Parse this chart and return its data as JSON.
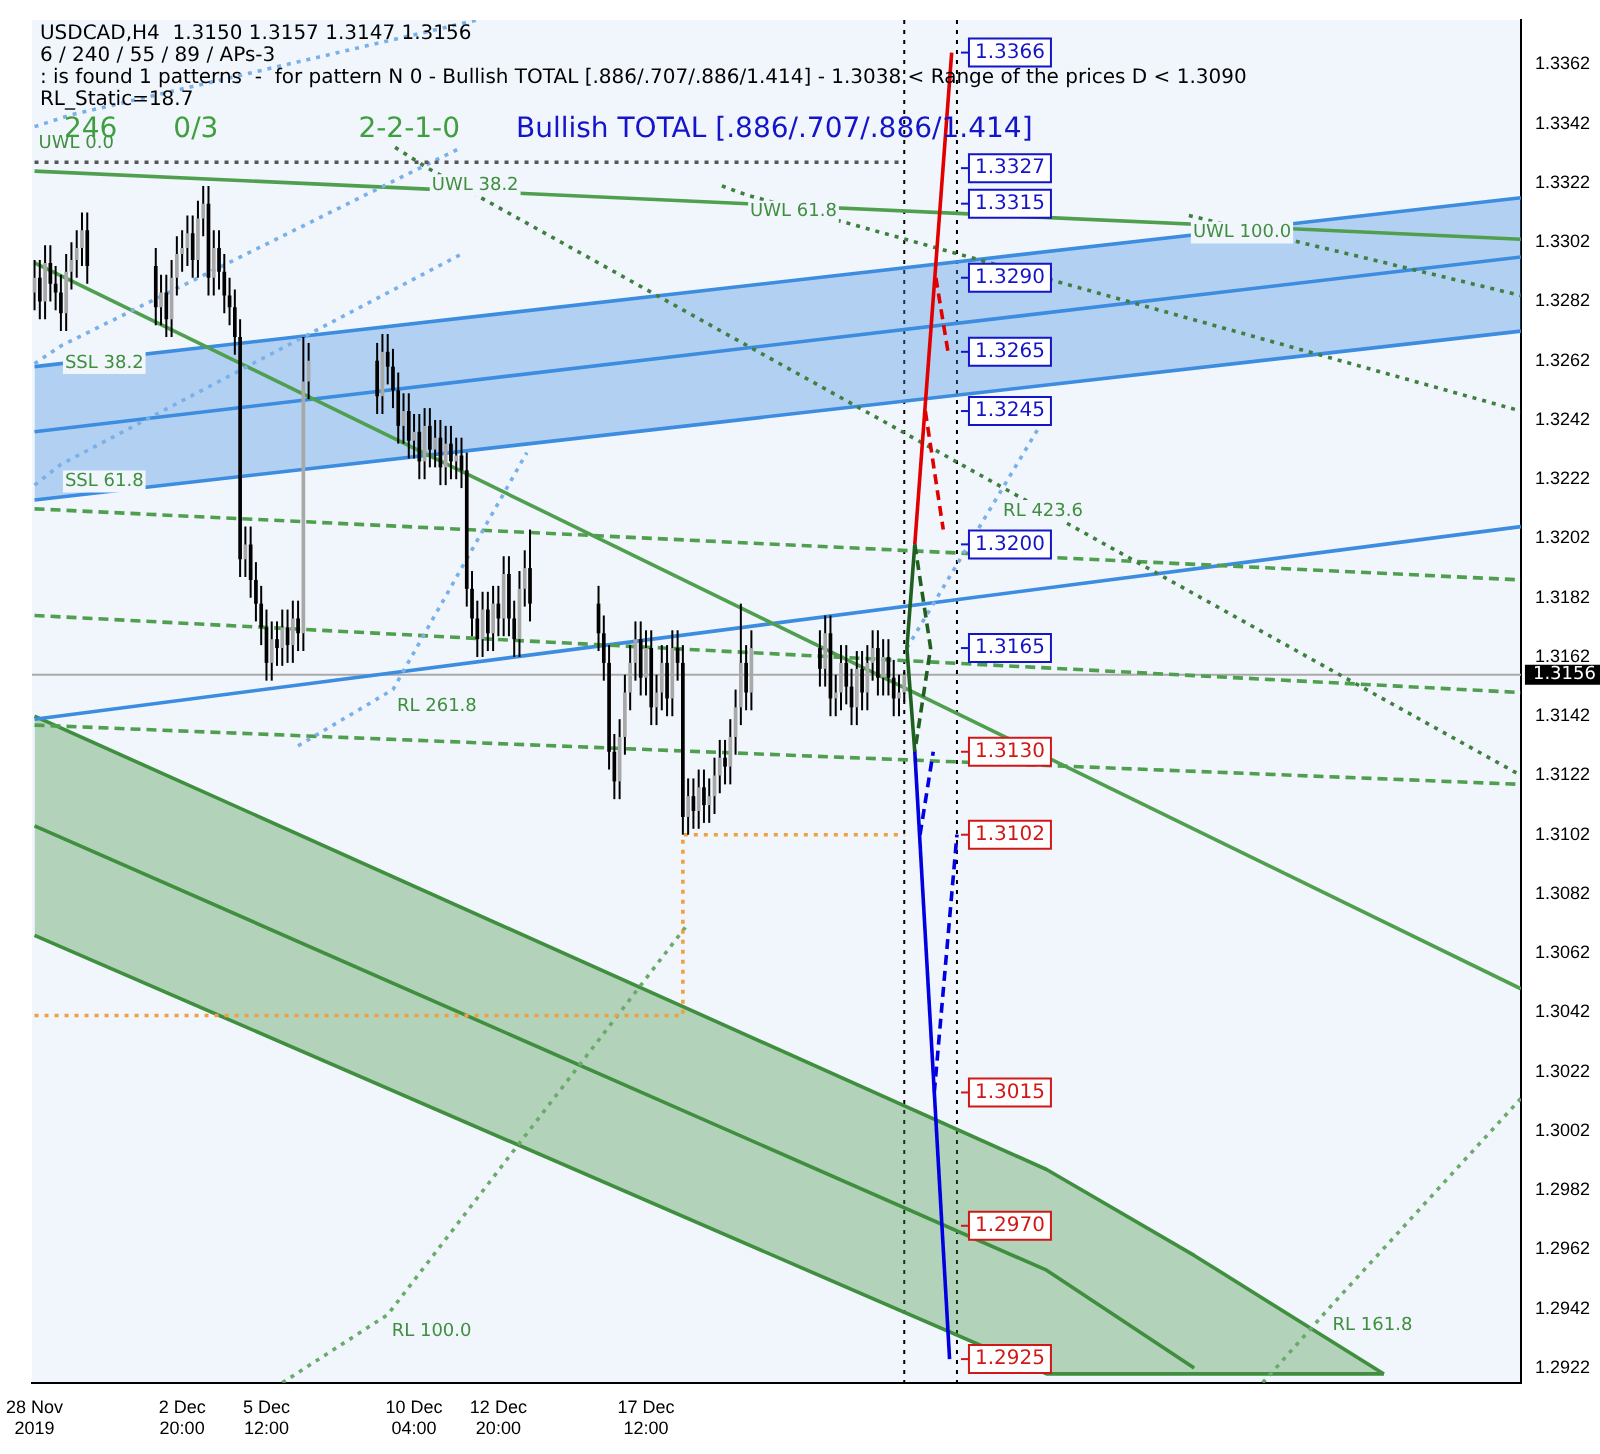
{
  "chart_data": {
    "type": "candlestick",
    "title": "USDCAD,H4  1.3150 1.3157 1.3147 1.3156",
    "annotations": [
      "6 / 240 / 55 / 89 / APs-3",
      ": is found 1 patterns  -  for pattern N 0 - Bullish TOTAL [.886/.707/.886/1.414] - 1.3038 < Range of the prices D < 1.3090",
      "RL_Static=18.7",
      "246",
      "0/3",
      "2-2-1-0",
      "Bullish TOTAL [.886/.707/.886/1.414]",
      {
        "text": "1.3366",
        "x": "2019-12-27T04:00",
        "y": 1.3366
      },
      {
        "text": "1.3327",
        "x": "2019-12-26T21:25",
        "y": 1.3327
      },
      {
        "text": "1.3315",
        "x": "2019-12-26T19:24",
        "y": 1.3315
      },
      {
        "text": "1.3290",
        "x": "2019-12-26T16:00",
        "y": 1.329
      },
      {
        "text": "1.3265",
        "x": "2019-12-27T01:12",
        "y": 1.3265
      },
      {
        "text": "1.3245",
        "x": "2019-12-26T08:00",
        "y": 1.3245
      },
      {
        "text": "1.3200",
        "x": "2019-12-26T00:00",
        "y": 1.32
      },
      {
        "text": "1.3165",
        "x": "2019-12-26T12:00",
        "y": 1.3165
      },
      {
        "text": "1.3130",
        "x": "2019-12-26T00:00",
        "y": 1.313
      },
      {
        "text": "1.3102",
        "x": "2019-12-26T04:00",
        "y": 1.3102
      },
      {
        "text": "1.3015",
        "x": "2019-12-26T14:48",
        "y": 1.3015
      },
      {
        "text": "1.2970",
        "x": "2019-12-26T20:36",
        "y": 1.297
      },
      {
        "text": "1.2925",
        "x": "2019-12-27T02:24",
        "y": 1.2925
      },
      {
        "text": "UWL 0.0",
        "x": "2019-11-28T04:00",
        "y": 1.3341
      },
      {
        "text": "UWL 38.2",
        "x": "2019-12-10T14:24",
        "y": 1.3327
      },
      {
        "text": "UWL 61.8",
        "x": "2019-12-20T16:00",
        "y": 1.3318
      },
      {
        "text": "UWL 100.0",
        "x": "2020-01-03T16:00",
        "y": 1.3311
      },
      {
        "text": "SSL 38.2",
        "x": "2019-11-29T00:00",
        "y": 1.3267
      },
      {
        "text": "SSL 61.8",
        "x": "2019-11-29T00:00",
        "y": 1.3227
      },
      {
        "text": "RL 261.8",
        "x": "2019-12-09T12:00",
        "y": 1.3151
      },
      {
        "text": "RL 423.6",
        "x": "2019-12-28T16:00",
        "y": 1.3217
      },
      {
        "text": "RL 100.0",
        "x": "2019-12-09T08:00",
        "y": 1.294
      },
      {
        "text": "RL 161.8",
        "x": "2020-01-08T02:00",
        "y": 1.2942
      }
    ],
    "x": [
      "2019-11-28T04:00",
      "2019-11-28T08:00",
      "2019-11-28T12:00",
      "2019-11-28T16:00",
      "2019-11-28T20:00",
      "2019-11-29T00:00",
      "2019-11-29T04:00",
      "2019-11-29T08:00",
      "2019-11-29T12:00",
      "2019-11-29T16:00",
      "2019-11-29T20:00",
      "2019-12-02T00:00",
      "2019-12-02T04:00",
      "2019-12-02T08:00",
      "2019-12-02T12:00",
      "2019-12-02T16:00",
      "2019-12-02T20:00",
      "2019-12-03T00:00",
      "2019-12-03T04:00",
      "2019-12-03T08:00",
      "2019-12-03T12:00",
      "2019-12-03T16:00",
      "2019-12-03T20:00",
      "2019-12-04T00:00",
      "2019-12-04T04:00",
      "2019-12-04T08:00",
      "2019-12-04T12:00",
      "2019-12-04T16:00",
      "2019-12-04T20:00",
      "2019-12-05T00:00",
      "2019-12-05T04:00",
      "2019-12-05T08:00",
      "2019-12-05T12:00",
      "2019-12-05T16:00",
      "2019-12-05T20:00",
      "2019-12-06T00:00",
      "2019-12-06T04:00",
      "2019-12-06T08:00",
      "2019-12-06T12:00",
      "2019-12-06T16:00",
      "2019-12-06T20:00",
      "2019-12-09T00:00",
      "2019-12-09T04:00",
      "2019-12-09T08:00",
      "2019-12-09T12:00",
      "2019-12-09T16:00",
      "2019-12-09T20:00",
      "2019-12-10T00:00",
      "2019-12-10T04:00",
      "2019-12-10T08:00",
      "2019-12-10T12:00",
      "2019-12-10T16:00",
      "2019-12-10T20:00",
      "2019-12-11T00:00",
      "2019-12-11T04:00",
      "2019-12-11T08:00",
      "2019-12-11T12:00",
      "2019-12-11T16:00",
      "2019-12-11T20:00",
      "2019-12-12T00:00",
      "2019-12-12T04:00",
      "2019-12-12T08:00",
      "2019-12-12T12:00",
      "2019-12-12T16:00",
      "2019-12-12T20:00",
      "2019-12-13T00:00",
      "2019-12-13T04:00",
      "2019-12-13T08:00",
      "2019-12-13T12:00",
      "2019-12-13T16:00",
      "2019-12-13T20:00",
      "2019-12-16T00:00",
      "2019-12-16T04:00",
      "2019-12-16T08:00",
      "2019-12-16T12:00",
      "2019-12-16T16:00",
      "2019-12-16T20:00",
      "2019-12-17T00:00",
      "2019-12-17T04:00",
      "2019-12-17T08:00",
      "2019-12-17T12:00",
      "2019-12-17T16:00",
      "2019-12-17T20:00",
      "2019-12-18T00:00",
      "2019-12-18T04:00",
      "2019-12-18T08:00",
      "2019-12-18T12:00",
      "2019-12-18T16:00",
      "2019-12-18T20:00",
      "2019-12-19T00:00",
      "2019-12-19T04:00",
      "2019-12-19T08:00",
      "2019-12-19T12:00",
      "2019-12-19T16:00",
      "2019-12-19T20:00",
      "2019-12-20T00:00",
      "2019-12-20T04:00",
      "2019-12-20T08:00",
      "2019-12-20T12:00",
      "2019-12-20T16:00",
      "2019-12-20T20:00",
      "2019-12-23T00:00",
      "2019-12-23T04:00",
      "2019-12-23T08:00",
      "2019-12-23T12:00",
      "2019-12-23T16:00",
      "2019-12-23T20:00",
      "2019-12-24T00:00",
      "2019-12-24T04:00",
      "2019-12-24T08:00",
      "2019-12-24T12:00",
      "2019-12-24T16:00",
      "2019-12-24T20:00",
      "2019-12-25T00:00",
      "2019-12-25T04:00",
      "2019-12-25T08:00",
      "2019-12-25T12:00",
      "2019-12-25T16:00"
    ],
    "ohlc": [
      [
        1.3285,
        1.3296,
        1.3279,
        1.329
      ],
      [
        1.329,
        1.3296,
        1.3276,
        1.3282
      ],
      [
        1.3282,
        1.3301,
        1.3276,
        1.3295
      ],
      [
        1.3295,
        1.3301,
        1.3282,
        1.3288
      ],
      [
        1.3288,
        1.3294,
        1.3279,
        1.3285
      ],
      [
        1.3285,
        1.3291,
        1.3272,
        1.3278
      ],
      [
        1.3278,
        1.3298,
        1.3272,
        1.3292
      ],
      [
        1.3292,
        1.3302,
        1.3286,
        1.3296
      ],
      [
        1.3296,
        1.3306,
        1.329,
        1.33
      ],
      [
        1.33,
        1.3312,
        1.3294,
        1.3306
      ],
      [
        1.3306,
        1.3312,
        1.3288,
        1.3294
      ],
      [
        1.3294,
        1.33,
        1.3274,
        1.328
      ],
      [
        1.328,
        1.3291,
        1.3274,
        1.3285
      ],
      [
        1.3285,
        1.3291,
        1.327,
        1.3276
      ],
      [
        1.3276,
        1.3296,
        1.327,
        1.329
      ],
      [
        1.329,
        1.3304,
        1.3284,
        1.3298
      ],
      [
        1.3298,
        1.3306,
        1.3292,
        1.33
      ],
      [
        1.33,
        1.3311,
        1.3294,
        1.3305
      ],
      [
        1.3305,
        1.3311,
        1.329,
        1.3296
      ],
      [
        1.3296,
        1.3316,
        1.329,
        1.331
      ],
      [
        1.331,
        1.3321,
        1.3304,
        1.3315
      ],
      [
        1.3315,
        1.3321,
        1.3284,
        1.329
      ],
      [
        1.329,
        1.3306,
        1.3284,
        1.33
      ],
      [
        1.33,
        1.3306,
        1.3286,
        1.3292
      ],
      [
        1.3292,
        1.3298,
        1.3278,
        1.3284
      ],
      [
        1.3284,
        1.329,
        1.3274,
        1.328
      ],
      [
        1.328,
        1.3286,
        1.3264,
        1.327
      ],
      [
        1.327,
        1.3276,
        1.3189,
        1.3195
      ],
      [
        1.3195,
        1.3206,
        1.3189,
        1.32
      ],
      [
        1.32,
        1.3206,
        1.3182,
        1.3188
      ],
      [
        1.3188,
        1.3194,
        1.3174,
        1.318
      ],
      [
        1.318,
        1.3186,
        1.3166,
        1.3172
      ],
      [
        1.3172,
        1.3178,
        1.3154,
        1.316
      ],
      [
        1.316,
        1.3174,
        1.3154,
        1.3168
      ],
      [
        1.3168,
        1.3174,
        1.3159,
        1.3165
      ],
      [
        1.3165,
        1.3178,
        1.3159,
        1.3172
      ],
      [
        1.3172,
        1.3178,
        1.316,
        1.3166
      ],
      [
        1.3166,
        1.3181,
        1.316,
        1.3175
      ],
      [
        1.3175,
        1.3181,
        1.3164,
        1.317
      ],
      [
        1.317,
        1.327,
        1.3164,
        1.3255
      ],
      [
        1.3255,
        1.3268,
        1.3249,
        1.3262
      ],
      [
        1.3262,
        1.3268,
        1.3244,
        1.325
      ],
      [
        1.325,
        1.3271,
        1.3244,
        1.3265
      ],
      [
        1.3265,
        1.3271,
        1.3254,
        1.326
      ],
      [
        1.326,
        1.3266,
        1.3246,
        1.3252
      ],
      [
        1.3252,
        1.3258,
        1.3234,
        1.324
      ],
      [
        1.324,
        1.3251,
        1.3234,
        1.3245
      ],
      [
        1.3245,
        1.3251,
        1.3229,
        1.3235
      ],
      [
        1.3235,
        1.3244,
        1.3229,
        1.3238
      ],
      [
        1.3238,
        1.3244,
        1.3222,
        1.3228
      ],
      [
        1.3228,
        1.3246,
        1.3222,
        1.324
      ],
      [
        1.324,
        1.3246,
        1.3226,
        1.3232
      ],
      [
        1.3232,
        1.3242,
        1.3226,
        1.3236
      ],
      [
        1.3236,
        1.3242,
        1.322,
        1.3226
      ],
      [
        1.3226,
        1.324,
        1.322,
        1.3234
      ],
      [
        1.3234,
        1.324,
        1.3222,
        1.3228
      ],
      [
        1.3228,
        1.3236,
        1.3222,
        1.323
      ],
      [
        1.323,
        1.3236,
        1.3219,
        1.3225
      ],
      [
        1.3225,
        1.3231,
        1.3179,
        1.3185
      ],
      [
        1.3185,
        1.3191,
        1.3169,
        1.3175
      ],
      [
        1.3175,
        1.3181,
        1.3162,
        1.3168
      ],
      [
        1.3168,
        1.3184,
        1.3162,
        1.3178
      ],
      [
        1.3178,
        1.3184,
        1.3164,
        1.317
      ],
      [
        1.317,
        1.3186,
        1.3164,
        1.318
      ],
      [
        1.318,
        1.3186,
        1.3169,
        1.3175
      ],
      [
        1.3175,
        1.3196,
        1.3169,
        1.319
      ],
      [
        1.319,
        1.3196,
        1.3169,
        1.3175
      ],
      [
        1.3175,
        1.3181,
        1.3162,
        1.3168
      ],
      [
        1.3168,
        1.3191,
        1.3162,
        1.3185
      ],
      [
        1.3185,
        1.3198,
        1.3179,
        1.3192
      ],
      [
        1.3192,
        1.3205,
        1.3174,
        1.318
      ],
      [
        1.318,
        1.3186,
        1.3164,
        1.317
      ],
      [
        1.317,
        1.3176,
        1.3154,
        1.316
      ],
      [
        1.316,
        1.3166,
        1.3124,
        1.313
      ],
      [
        1.313,
        1.3136,
        1.3114,
        1.312
      ],
      [
        1.312,
        1.3141,
        1.3114,
        1.3135
      ],
      [
        1.3135,
        1.3156,
        1.3129,
        1.315
      ],
      [
        1.315,
        1.3166,
        1.3144,
        1.316
      ],
      [
        1.316,
        1.3174,
        1.3154,
        1.3168
      ],
      [
        1.3168,
        1.3174,
        1.3149,
        1.3155
      ],
      [
        1.3155,
        1.3171,
        1.3149,
        1.3165
      ],
      [
        1.3165,
        1.3171,
        1.3139,
        1.3145
      ],
      [
        1.3145,
        1.3156,
        1.3139,
        1.315
      ],
      [
        1.315,
        1.3166,
        1.3144,
        1.316
      ],
      [
        1.316,
        1.3166,
        1.3142,
        1.3148
      ],
      [
        1.3148,
        1.3171,
        1.3142,
        1.3165
      ],
      [
        1.3165,
        1.3171,
        1.3154,
        1.316
      ],
      [
        1.316,
        1.3166,
        1.3102,
        1.3108
      ],
      [
        1.3108,
        1.3121,
        1.3102,
        1.3115
      ],
      [
        1.3115,
        1.3121,
        1.3104,
        1.311
      ],
      [
        1.311,
        1.3124,
        1.3104,
        1.3118
      ],
      [
        1.3118,
        1.3124,
        1.3106,
        1.3112
      ],
      [
        1.3112,
        1.3121,
        1.3106,
        1.3115
      ],
      [
        1.3115,
        1.3128,
        1.3109,
        1.3122
      ],
      [
        1.3122,
        1.3134,
        1.3116,
        1.3128
      ],
      [
        1.3128,
        1.3134,
        1.3119,
        1.3125
      ],
      [
        1.3125,
        1.3141,
        1.3119,
        1.3135
      ],
      [
        1.3135,
        1.3151,
        1.3129,
        1.3145
      ],
      [
        1.3145,
        1.318,
        1.3139,
        1.316
      ],
      [
        1.316,
        1.3166,
        1.3144,
        1.315
      ],
      [
        1.315,
        1.3171,
        1.3144,
        1.3165
      ],
      [
        1.3165,
        1.3171,
        1.3152,
        1.3158
      ],
      [
        1.3158,
        1.3176,
        1.3152,
        1.317
      ],
      [
        1.317,
        1.3176,
        1.3142,
        1.3148
      ],
      [
        1.3148,
        1.3156,
        1.3142,
        1.315
      ],
      [
        1.315,
        1.3166,
        1.3144,
        1.316
      ],
      [
        1.316,
        1.3166,
        1.3146,
        1.3152
      ],
      [
        1.3152,
        1.3158,
        1.3139,
        1.3145
      ],
      [
        1.3145,
        1.3164,
        1.3139,
        1.3158
      ],
      [
        1.3158,
        1.3164,
        1.3144,
        1.315
      ],
      [
        1.315,
        1.3166,
        1.3144,
        1.316
      ],
      [
        1.316,
        1.3171,
        1.3154,
        1.3165
      ],
      [
        1.3165,
        1.3171,
        1.3149,
        1.3155
      ],
      [
        1.3155,
        1.3168,
        1.3149,
        1.3162
      ],
      [
        1.3162,
        1.3168,
        1.3149,
        1.3155
      ],
      [
        1.3155,
        1.3161,
        1.3142,
        1.3148
      ],
      [
        1.3148,
        1.3156,
        1.3142,
        1.315
      ],
      [
        1.315,
        1.3157,
        1.3147,
        1.3156
      ]
    ],
    "series": [
      {
        "type": "line",
        "x": [
          "2019-11-28T04:00",
          "2020-01-14T04:00"
        ],
        "values": [
          1.3238,
          1.3297
        ],
        "lower": [
          1.3215,
          1.3272
        ],
        "upper": [
          1.326,
          1.3317
        ],
        "color": "#3c8ce0"
      },
      {
        "type": "line",
        "x": [
          "2019-11-28T04:00",
          "2019-12-30T04:00",
          "2020-01-03T20:00",
          "2020-01-09T20:00"
        ],
        "values": [
          1.3105,
          1.2955,
          1.2922,
          null
        ],
        "lower": [
          1.3068,
          1.292,
          1.292,
          1.292
        ],
        "upper": [
          1.3142,
          1.2989,
          1.296,
          1.292
        ],
        "color": "#3f8f3f"
      },
      {
        "type": "line",
        "x": [
          "2019-11-28T04:00",
          "2020-01-14T04:00"
        ],
        "values": [
          1.3215,
          1.3272
        ],
        "color": "#3c8ce0"
      },
      {
        "type": "line",
        "x": [
          "2019-11-28T04:00",
          "2020-01-14T04:00"
        ],
        "values": [
          1.326,
          1.3317
        ],
        "color": "#3c8ce0"
      },
      {
        "type": "line",
        "x": [
          "2019-11-28T04:00",
          "2019-12-30T04:00",
          "2020-01-03T20:00",
          "2020-01-09T20:00"
        ],
        "values": [
          1.3068,
          1.292,
          1.292,
          1.292
        ],
        "color": "#3f8f3f"
      },
      {
        "type": "line",
        "x": [
          "2019-11-28T04:00",
          "2019-12-30T04:00",
          "2020-01-03T20:00",
          "2020-01-09T20:00"
        ],
        "values": [
          1.3142,
          1.2989,
          1.296,
          1.292
        ],
        "color": "#3f8f3f"
      },
      {
        "type": "line",
        "x": [
          "2019-11-28T04:00",
          "2020-01-14T04:00"
        ],
        "values": [
          1.3141,
          1.3206
        ],
        "color": "#3c8ce0"
      },
      {
        "type": "line",
        "x": [
          "2019-11-28T04:00",
          "2020-01-14T04:00"
        ],
        "values": [
          1.3295,
          1.305
        ],
        "color": "#4f9f4f"
      },
      {
        "type": "line",
        "x": [
          "2019-11-28T04:00",
          "2020-01-14T04:00"
        ],
        "values": [
          1.3326,
          1.3303
        ],
        "color": "#4f9f4f"
      },
      {
        "type": "line",
        "x": [
          "2019-11-28T04:00",
          "2020-01-14T04:00"
        ],
        "values": [
          1.3212,
          1.3188
        ],
        "color": "#4f9f4f",
        "line_style": "dashed"
      },
      {
        "type": "line",
        "x": [
          "2019-11-28T04:00",
          "2020-01-14T04:00"
        ],
        "values": [
          1.3176,
          1.315
        ],
        "color": "#4f9f4f",
        "line_style": "dashed"
      },
      {
        "type": "line",
        "x": [
          "2019-11-28T04:00",
          "2020-01-14T04:00"
        ],
        "values": [
          1.3139,
          1.3119
        ],
        "color": "#4f9f4f",
        "line_style": "dashed"
      },
      {
        "type": "line",
        "x": [
          "2019-12-09T13:36",
          "2019-12-10T14:24",
          "2020-01-14T04:00"
        ],
        "values": [
          1.3334,
          1.3327,
          1.3122
        ],
        "color": "#3f7f3f",
        "line_style": "dotted"
      },
      {
        "type": "line",
        "x": [
          "2019-12-19T21:36",
          "2019-12-20T16:00",
          "2020-01-14T04:00"
        ],
        "values": [
          1.3321,
          1.3318,
          1.3245
        ],
        "color": "#3f7f3f",
        "line_style": "dotted"
      },
      {
        "type": "line",
        "x": [
          "2020-01-03T16:00",
          "2020-01-14T04:00"
        ],
        "values": [
          1.3311,
          1.3284
        ],
        "color": "#3f7f3f",
        "line_style": "dotted"
      },
      {
        "type": "line",
        "x": [
          "2019-11-28T04:00",
          "2019-11-29T08:00",
          "2019-12-12T04:00"
        ],
        "values": [
          1.3341,
          1.3345,
          1.3377
        ],
        "color": "#7ab0e8",
        "line_style": "dotted"
      },
      {
        "type": "line",
        "x": [
          "2019-11-28T04:00",
          "2019-11-29T00:00",
          "2019-12-11T16:00"
        ],
        "values": [
          1.3261,
          1.3267,
          1.3334
        ],
        "color": "#7ab0e8",
        "line_style": "dotted"
      },
      {
        "type": "line",
        "x": [
          "2019-11-28T04:00",
          "2019-11-29T00:00",
          "2019-12-11T16:00"
        ],
        "values": [
          1.322,
          1.3227,
          1.3298
        ],
        "color": "#7ab0e8",
        "line_style": "dotted"
      },
      {
        "type": "line",
        "x": [
          "2019-12-06T12:00",
          "2019-12-09T12:00",
          "2019-12-13T17:36"
        ],
        "values": [
          1.3132,
          1.3151,
          1.3231
        ],
        "color": "#7ab0e8",
        "line_style": "dotted"
      },
      {
        "type": "line",
        "x": [
          "2019-12-25T18:00",
          "2019-12-28T16:00",
          "2019-12-30T05:36"
        ],
        "values": [
          1.3165,
          1.3217,
          1.3245
        ],
        "color": "#7ab0e8",
        "line_style": "dotted"
      },
      {
        "type": "line",
        "x": [
          "2019-12-06T00:00",
          "2019-12-09T08:00",
          "2019-12-18T20:00"
        ],
        "values": [
          1.2917,
          1.294,
          1.3072
        ],
        "color": "#6aaa6a",
        "line_style": "dotted"
      },
      {
        "type": "line",
        "x": [
          "2020-01-06T00:00",
          "2020-01-08T02:00",
          "2020-01-14T04:00"
        ],
        "values": [
          1.2917,
          1.2942,
          1.3013
        ],
        "color": "#6aaa6a",
        "line_style": "dotted"
      },
      {
        "type": "line",
        "x": [
          "2019-11-28T04:00",
          "2019-12-25T16:00"
        ],
        "values": [
          1.3329,
          1.3329
        ],
        "color": "#555555",
        "line_style": "dotted"
      },
      {
        "type": "line",
        "x": [
          "2019-11-28T04:00",
          "2019-12-18T16:00",
          "2019-12-18T16:00",
          "2019-12-25T16:00"
        ],
        "values": [
          1.3041,
          1.3041,
          1.3102,
          1.3102
        ],
        "color": "#f0a040",
        "line_style": "dotted"
      },
      {
        "type": "line",
        "x": [
          "2019-12-26T00:00",
          "2019-12-27T04:00"
        ],
        "values": [
          1.32,
          1.3366
        ],
        "color": "#e00000"
      },
      {
        "type": "line",
        "x": [
          "2019-12-26T16:00",
          "2019-12-27T01:12"
        ],
        "values": [
          1.329,
          1.3265
        ],
        "color": "#e00000",
        "line_style": "dashed"
      },
      {
        "type": "line",
        "x": [
          "2019-12-26T08:00",
          "2019-12-26T21:36"
        ],
        "values": [
          1.3245,
          1.3205
        ],
        "color": "#e00000",
        "line_style": "dashed"
      },
      {
        "type": "line",
        "x": [
          "2019-12-26T00:00",
          "2019-12-25T18:00",
          "2019-12-26T00:00"
        ],
        "values": [
          1.32,
          1.3165,
          1.313
        ],
        "color": "#1f5f1f"
      },
      {
        "type": "line",
        "x": [
          "2019-12-26T00:00",
          "2019-12-26T12:00",
          "2019-12-26T00:00"
        ],
        "values": [
          1.32,
          1.3165,
          1.313
        ],
        "color": "#1f5f1f",
        "line_style": "dashed"
      },
      {
        "type": "line",
        "x": [
          "2019-12-26T00:00",
          "2019-12-27T02:24"
        ],
        "values": [
          1.313,
          1.2925
        ],
        "color": "#0000e0"
      },
      {
        "type": "line",
        "x": [
          "2019-12-26T04:00",
          "2019-12-26T14:00"
        ],
        "values": [
          1.3102,
          1.313
        ],
        "color": "#0000e0",
        "line_style": "dashed"
      },
      {
        "type": "line",
        "x": [
          "2019-12-26T14:48",
          "2019-12-27T08:00"
        ],
        "values": [
          1.3015,
          1.3102
        ],
        "color": "#0000e0",
        "line_style": "dashed"
      }
    ],
    "ref_lines": [
      {
        "axis": "y",
        "value": 1.3156,
        "label": "1.3156",
        "color": "#aaaaaa"
      },
      {
        "axis": "x",
        "value": "2019-12-25T16:00",
        "color": "#000000",
        "line_style": "dotted"
      },
      {
        "axis": "x",
        "value": "2019-12-27T08:00",
        "color": "#000000",
        "line_style": "dotted"
      }
    ],
    "xlim": [
      "2019-11-28T02:00",
      "2020-01-14T04:00"
    ],
    "xticks": [
      {
        "value": "2019-11-28T04:00",
        "label": "28 Nov 2019"
      },
      {
        "value": "2019-12-02T20:00",
        "label": "2 Dec 20:00"
      },
      {
        "value": "2019-12-05T12:00",
        "label": "5 Dec 12:00"
      },
      {
        "value": "2019-12-10T04:00",
        "label": "10 Dec 04:00"
      },
      {
        "value": "2019-12-12T20:00",
        "label": "12 Dec 20:00"
      },
      {
        "value": "2019-12-17T12:00",
        "label": "17 Dec 12:00"
      }
    ],
    "ylim": [
      1.2917,
      1.3377
    ],
    "yticks": [
      1.2922,
      1.2942,
      1.2962,
      1.2982,
      1.3002,
      1.3022,
      1.3042,
      1.3062,
      1.3082,
      1.3102,
      1.3122,
      1.3142,
      1.3162,
      1.3182,
      1.3202,
      1.3222,
      1.3242,
      1.3262,
      1.3282,
      1.3302,
      1.3322,
      1.3342,
      1.3362
    ],
    "grid": false,
    "legend": false,
    "marker": "none"
  }
}
